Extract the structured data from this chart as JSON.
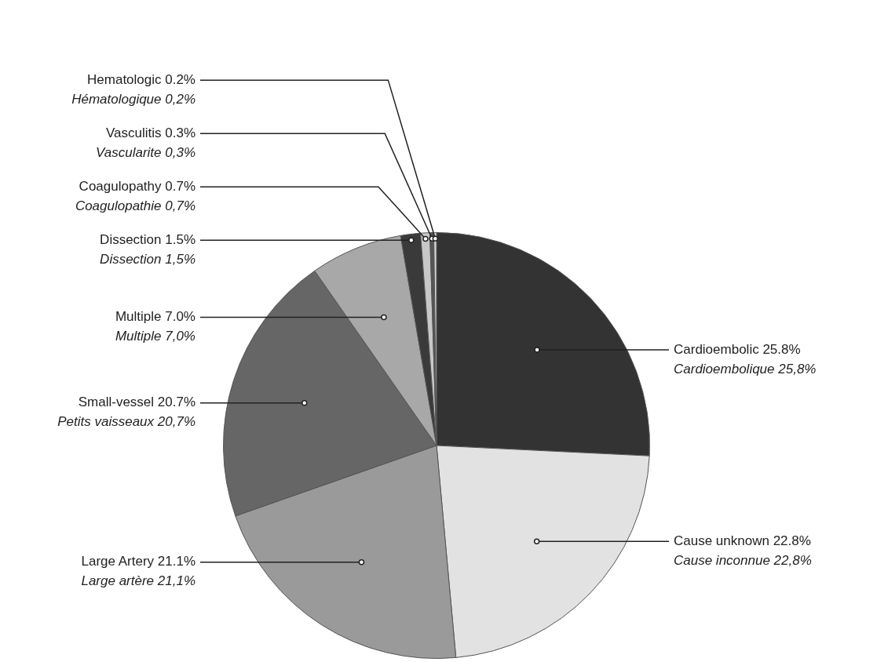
{
  "chart_data": {
    "type": "pie",
    "categories": [
      "Cardioembolic 25.8%\nCardioembolique 25,8%",
      "Cause unknown 22.8%\nCause inconnue 22,8%",
      "Large Artery 21.1%\nLarge artère 21,1%",
      "Small-vessel 20.7%\nPetits vaisseaux 20,7%",
      "Multiple 7.0%\nMultiple 7,0%",
      "Dissection 1.5%\nDissection 1,5%",
      "Coagulopathy 0.7%\nCoagulopathie 0,7%",
      "Vasculitis 0.3%\nVascularite 0,3%",
      "Hematologic 0.2%\nHématologique 0,2%"
    ],
    "values": [
      25.8,
      22.8,
      21.1,
      20.7,
      7.0,
      1.5,
      0.7,
      0.3,
      0.2
    ],
    "colors": [
      "#333333",
      "#e2e2e2",
      "#9a9a9a",
      "#666666",
      "#a8a8a8",
      "#3a3a3a",
      "#c8c8c8",
      "#555555",
      "#d8d8d8"
    ],
    "legend": false
  }
}
